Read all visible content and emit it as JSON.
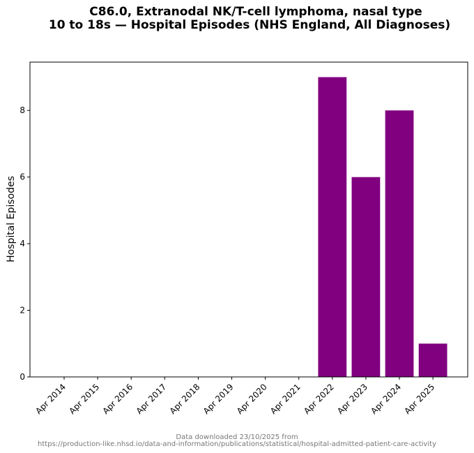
{
  "chart_data": {
    "type": "bar",
    "title_lines": [
      "C86.0, Extranodal NK/T-cell lymphoma, nasal type",
      "10 to 18s — Hospital Episodes (NHS England, All Diagnoses)"
    ],
    "xlabel": "",
    "ylabel": "Hospital Episodes",
    "categories": [
      "Apr 2014",
      "Apr 2015",
      "Apr 2016",
      "Apr 2017",
      "Apr 2018",
      "Apr 2019",
      "Apr 2020",
      "Apr 2021",
      "Apr 2022",
      "Apr 2023",
      "Apr 2024",
      "Apr 2025"
    ],
    "values": [
      0,
      0,
      0,
      0,
      0,
      0,
      0,
      0,
      9,
      6,
      8,
      1
    ],
    "ylim": [
      0,
      9.45
    ],
    "yticks": [
      "0",
      "2",
      "4",
      "6",
      "8"
    ],
    "grid": false,
    "bar_color": "#800080",
    "footer_lines": [
      "Data downloaded 23/10/2025 from",
      "https://production-like.nhsd.io/data-and-information/publications/statistical/hospital-admitted-patient-care-activity"
    ]
  }
}
